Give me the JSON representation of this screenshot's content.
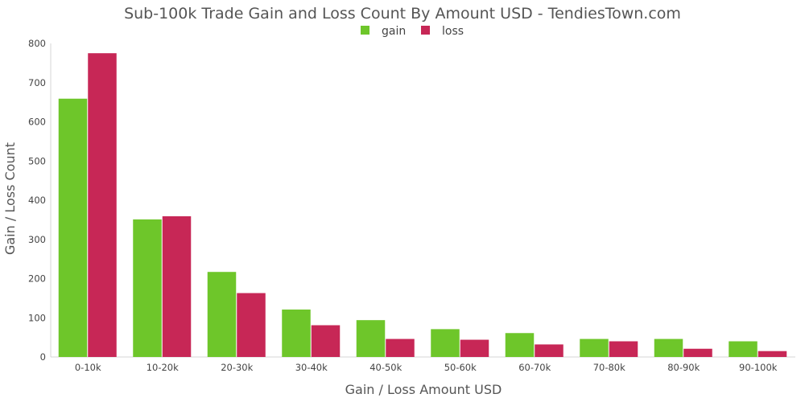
{
  "chart_data": {
    "type": "bar",
    "title": "Sub-100k Trade Gain and Loss Count By Amount USD - TendiesTown.com",
    "xlabel": "Gain / Loss Amount USD",
    "ylabel": "Gain / Loss Count",
    "categories": [
      "0-10k",
      "10-20k",
      "20-30k",
      "30-40k",
      "40-50k",
      "50-60k",
      "60-70k",
      "70-80k",
      "80-90k",
      "90-100k"
    ],
    "series": [
      {
        "name": "gain",
        "color": "#6ec62a",
        "values": [
          659,
          351,
          217,
          121,
          94,
          71,
          61,
          46,
          46,
          40
        ]
      },
      {
        "name": "loss",
        "color": "#c72756",
        "values": [
          775,
          359,
          163,
          81,
          46,
          44,
          32,
          40,
          21,
          15
        ]
      }
    ],
    "ylim": [
      0,
      800
    ],
    "yticks": [
      "0",
      "100",
      "200",
      "300",
      "400",
      "500",
      "600",
      "700",
      "800"
    ],
    "grid": false,
    "legend_position": "top-center"
  }
}
